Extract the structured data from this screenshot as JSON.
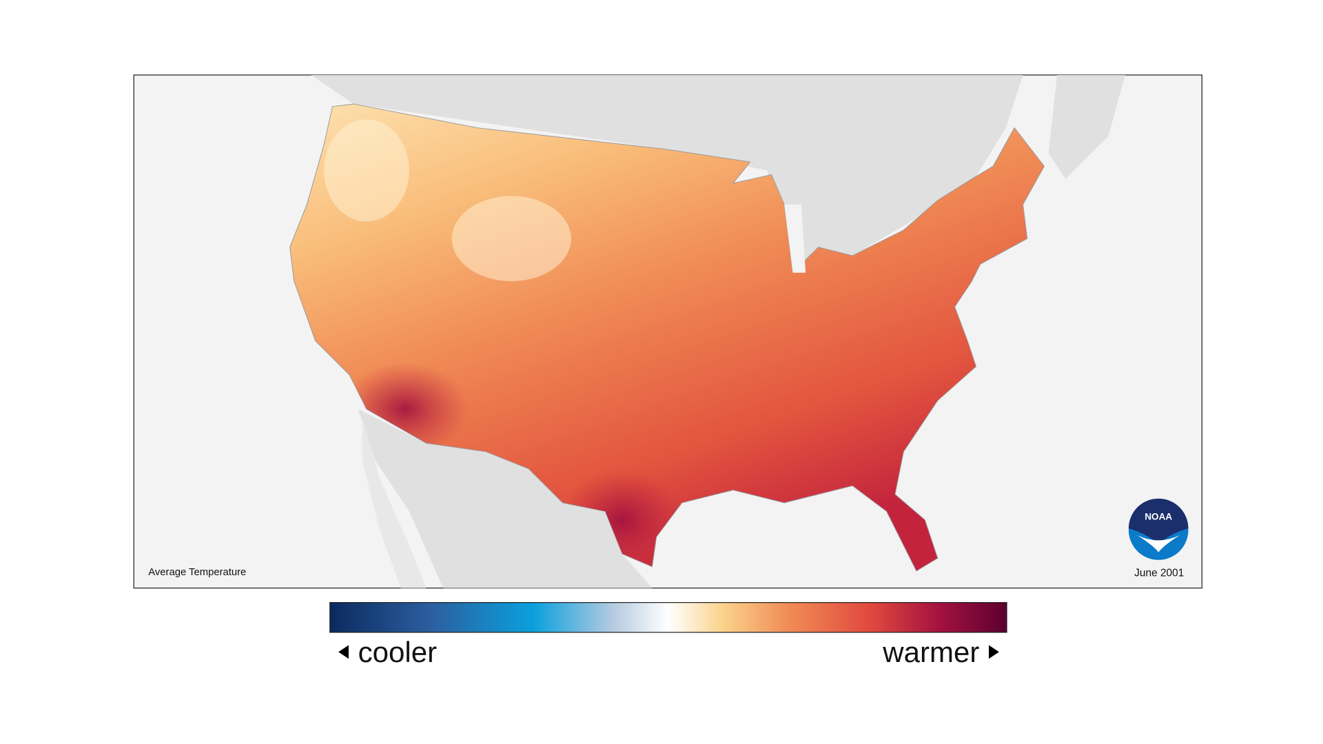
{
  "map": {
    "title": "Average Temperature",
    "date": "June 2001"
  },
  "legend": {
    "low": "cooler",
    "high": "warmer"
  },
  "logo": {
    "text": "NOAA"
  }
}
